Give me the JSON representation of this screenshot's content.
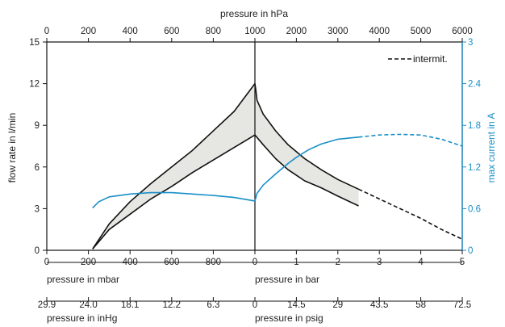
{
  "chart_data": {
    "type": "line",
    "axes": {
      "left": {
        "label": "flow rate in l/min",
        "ticks": [
          "0",
          "3",
          "6",
          "9",
          "12",
          "15"
        ],
        "range": [
          0,
          15
        ]
      },
      "right": {
        "label": "max current in A",
        "ticks": [
          "0",
          "0.6",
          "1.2",
          "1.8",
          "2.4",
          "3"
        ],
        "range": [
          0,
          3
        ],
        "color": "#1a8fc7"
      },
      "top": {
        "label": "pressure in hPa",
        "ticks": [
          "0",
          "200",
          "400",
          "600",
          "800",
          "1000",
          "2000",
          "3000",
          "4000",
          "5000",
          "6000"
        ]
      },
      "bottom_mbar": {
        "label": "pressure in mbar",
        "ticks": [
          "0",
          "200",
          "400",
          "600",
          "800",
          "0"
        ]
      },
      "bottom_bar": {
        "label": "pressure in bar",
        "ticks": [
          "1",
          "2",
          "3",
          "4",
          "5"
        ]
      },
      "bottom_inhg": {
        "label": "pressure in inHg",
        "ticks": [
          "29.9",
          "24.0",
          "18.1",
          "12.2",
          "6.3",
          "0"
        ]
      },
      "bottom_psig": {
        "label": "pressure in psig",
        "ticks": [
          "14.5",
          "29",
          "43.5",
          "58",
          "72.5"
        ]
      }
    },
    "legend": {
      "label": "intermit.",
      "position": "top-right"
    },
    "colors": {
      "flow": "#111111",
      "current": "#1a8fc7",
      "band": "#e6e6e2"
    },
    "vacuum_flow_upper": {
      "x_mbar": [
        220,
        300,
        400,
        500,
        600,
        700,
        800,
        900,
        1000
      ],
      "y": [
        0.1,
        1.9,
        3.5,
        4.8,
        6.0,
        7.2,
        8.6,
        10.0,
        12.0
      ]
    },
    "vacuum_flow_lower": {
      "x_mbar": [
        220,
        300,
        400,
        500,
        600,
        700,
        800,
        900,
        1000
      ],
      "y": [
        0.1,
        1.5,
        2.6,
        3.7,
        4.6,
        5.6,
        6.5,
        7.4,
        8.3
      ]
    },
    "pressure_flow_upper": {
      "x_bar": [
        0,
        0.02,
        0.05,
        0.2,
        0.5,
        0.8,
        1.2,
        1.6,
        2.0,
        2.5
      ],
      "y": [
        12.0,
        11.6,
        10.8,
        9.8,
        8.6,
        7.6,
        6.6,
        5.8,
        5.1,
        4.4
      ]
    },
    "pressure_flow_lower": {
      "x_bar": [
        0,
        0.2,
        0.5,
        0.8,
        1.0,
        1.2,
        1.6,
        2.0,
        2.5
      ],
      "y": [
        8.3,
        7.6,
        6.6,
        5.8,
        5.4,
        5.0,
        4.5,
        3.9,
        3.2
      ]
    },
    "intermittent_flow": {
      "x_bar": [
        2.5,
        3.0,
        3.5,
        4.0,
        4.5,
        5.0
      ],
      "y": [
        4.4,
        3.7,
        3.0,
        2.3,
        1.5,
        0.8
      ]
    },
    "vacuum_current": {
      "x_mbar": [
        220,
        250,
        300,
        400,
        500,
        600,
        700,
        800,
        900,
        1000
      ],
      "y": [
        0.61,
        0.7,
        0.77,
        0.81,
        0.83,
        0.83,
        0.81,
        0.79,
        0.76,
        0.71
      ]
    },
    "pressure_current": {
      "x_bar": [
        0,
        0.05,
        0.2,
        0.5,
        0.8,
        1.0,
        1.3,
        1.6,
        2.0,
        2.5
      ],
      "y": [
        0.71,
        0.82,
        0.94,
        1.1,
        1.25,
        1.34,
        1.45,
        1.53,
        1.6,
        1.63
      ]
    },
    "intermittent_current": {
      "x_bar": [
        2.5,
        3.0,
        3.5,
        4.0,
        4.5,
        5.0
      ],
      "y": [
        1.63,
        1.66,
        1.67,
        1.66,
        1.6,
        1.5
      ]
    }
  }
}
